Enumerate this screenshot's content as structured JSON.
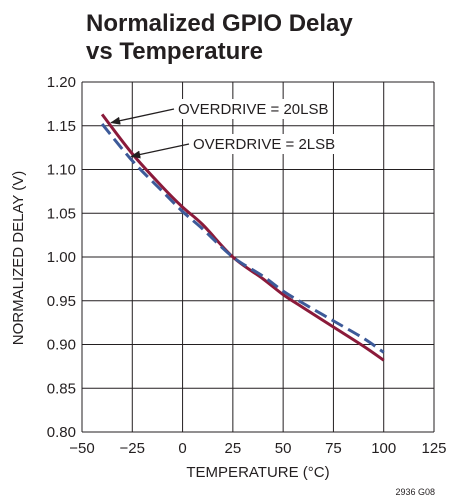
{
  "chart_data": {
    "type": "line",
    "title_lines": [
      "Normalized GPIO Delay",
      "vs Temperature"
    ],
    "xlabel": "TEMPERATURE (°C)",
    "ylabel": "NORMALIZED DELAY (V)",
    "xlim": [
      -50,
      125
    ],
    "ylim": [
      0.8,
      1.2
    ],
    "x_ticks": [
      -50,
      -25,
      0,
      25,
      50,
      75,
      100,
      125
    ],
    "x_tick_labels": [
      "−50",
      "−25",
      "0",
      "25",
      "50",
      "75",
      "100",
      "125"
    ],
    "y_ticks": [
      0.8,
      0.85,
      0.9,
      0.95,
      1.0,
      1.05,
      1.1,
      1.15,
      1.2
    ],
    "y_tick_labels": [
      "0.80",
      "0.85",
      "0.90",
      "0.95",
      "1.00",
      "1.05",
      "1.10",
      "1.15",
      "1.20"
    ],
    "grid": true,
    "series": [
      {
        "name": "OVERDRIVE = 20LSB",
        "color": "#8b1a3a",
        "style": "solid",
        "x": [
          -40,
          -25,
          -10,
          0,
          10,
          25,
          40,
          50,
          60,
          75,
          90,
          100
        ],
        "y": [
          1.163,
          1.118,
          1.08,
          1.057,
          1.037,
          1.0,
          0.975,
          0.957,
          0.942,
          0.92,
          0.898,
          0.882
        ]
      },
      {
        "name": "OVERDRIVE = 2LSB",
        "color": "#3d5a99",
        "style": "dashed",
        "x": [
          -40,
          -25,
          -10,
          0,
          10,
          25,
          40,
          50,
          60,
          75,
          90,
          100
        ],
        "y": [
          1.152,
          1.11,
          1.075,
          1.052,
          1.032,
          1.0,
          0.978,
          0.961,
          0.947,
          0.927,
          0.907,
          0.891
        ]
      }
    ],
    "annotations": [
      {
        "text": "OVERDRIVE = 20LSB",
        "points_to_series": 0,
        "at_x": -38
      },
      {
        "text": "OVERDRIVE = 2LSB",
        "points_to_series": 1,
        "at_x": -28
      }
    ],
    "figure_id": "2936 G08"
  }
}
